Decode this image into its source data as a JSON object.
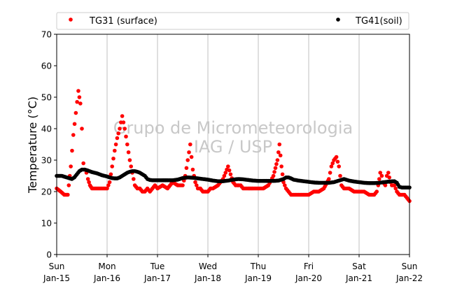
{
  "chart_data": {
    "type": "scatter",
    "ylabel": "Temperature (°C)",
    "ylim": [
      0,
      70
    ],
    "yticks": [
      0,
      10,
      20,
      30,
      40,
      50,
      60,
      70
    ],
    "xlim": [
      0,
      7
    ],
    "xticks": [
      {
        "x": 0,
        "day": "Sun",
        "date": "Jan-15"
      },
      {
        "x": 1,
        "day": "Mon",
        "date": "Jan-16"
      },
      {
        "x": 2,
        "day": "Tue",
        "date": "Jan-17"
      },
      {
        "x": 3,
        "day": "Wed",
        "date": "Jan-18"
      },
      {
        "x": 4,
        "day": "Thu",
        "date": "Jan-19"
      },
      {
        "x": 5,
        "day": "Fri",
        "date": "Jan-20"
      },
      {
        "x": 6,
        "day": "Sat",
        "date": "Jan-21"
      },
      {
        "x": 7,
        "day": "Sun",
        "date": "Jan-22"
      }
    ],
    "grid": "vertical",
    "legend_position": "top",
    "watermark": [
      "Grupo de Micrometeorologia",
      "IAG / USP"
    ],
    "series": [
      {
        "name": "TG31 (surface)",
        "color": "#ff0000",
        "x": [
          0.0,
          0.08,
          0.15,
          0.22,
          0.28,
          0.33,
          0.38,
          0.43,
          0.47,
          0.5,
          0.53,
          0.56,
          0.59,
          0.62,
          0.66,
          0.7,
          0.75,
          0.8,
          0.85,
          0.9,
          0.95,
          1.0,
          1.05,
          1.1,
          1.15,
          1.2,
          1.25,
          1.3,
          1.35,
          1.4,
          1.45,
          1.5,
          1.55,
          1.6,
          1.65,
          1.7,
          1.75,
          1.8,
          1.85,
          1.9,
          1.95,
          2.0,
          2.1,
          2.2,
          2.3,
          2.4,
          2.5,
          2.55,
          2.6,
          2.65,
          2.7,
          2.75,
          2.8,
          2.85,
          2.9,
          2.95,
          3.0,
          3.05,
          3.1,
          3.2,
          3.3,
          3.4,
          3.5,
          3.55,
          3.58,
          3.62,
          3.65,
          3.7,
          3.75,
          3.8,
          3.9,
          4.0,
          4.1,
          4.2,
          4.3,
          4.38,
          4.42,
          4.46,
          4.5,
          4.55,
          4.6,
          4.65,
          4.7,
          4.8,
          4.9,
          5.0,
          5.1,
          5.2,
          5.3,
          5.4,
          5.45,
          5.5,
          5.55,
          5.6,
          5.65,
          5.7,
          5.8,
          5.9,
          6.0,
          6.1,
          6.2,
          6.3,
          6.35,
          6.38,
          6.42,
          6.45,
          6.48,
          6.52,
          6.55,
          6.58,
          6.62,
          6.65,
          6.7,
          6.75,
          6.8,
          6.85,
          6.9,
          6.95,
          7.0
        ],
        "y": [
          21,
          20,
          19,
          19,
          28,
          38,
          45,
          52,
          48,
          40,
          29,
          27,
          26,
          24,
          22,
          21,
          21,
          21,
          21,
          21,
          21,
          21,
          23,
          28,
          33,
          37,
          40,
          44,
          40,
          35,
          30,
          26,
          22,
          21,
          21,
          20,
          20,
          21,
          20,
          21,
          22,
          21,
          22,
          21,
          23,
          22,
          22,
          25,
          30,
          35,
          27,
          23,
          21,
          21,
          20,
          20,
          20,
          21,
          21,
          22,
          24,
          28,
          23,
          22,
          22,
          22,
          22,
          21,
          21,
          21,
          21,
          21,
          21,
          22,
          25,
          30,
          35,
          28,
          23,
          21,
          20,
          19,
          19,
          19,
          19,
          19,
          20,
          20,
          21,
          24,
          28,
          30,
          31,
          28,
          22,
          21,
          21,
          20,
          20,
          20,
          19,
          19,
          20,
          22,
          26,
          25,
          23,
          22,
          25,
          26,
          23,
          22,
          22,
          20,
          19,
          19,
          19,
          18,
          17
        ]
      },
      {
        "name": "TG41(soil)",
        "color": "#000000",
        "x": [
          0.0,
          0.1,
          0.2,
          0.3,
          0.35,
          0.4,
          0.45,
          0.5,
          0.55,
          0.6,
          0.65,
          0.7,
          0.75,
          0.8,
          0.85,
          0.9,
          0.95,
          1.0,
          1.05,
          1.1,
          1.15,
          1.2,
          1.25,
          1.3,
          1.35,
          1.4,
          1.45,
          1.5,
          1.55,
          1.6,
          1.65,
          1.7,
          1.75,
          1.8,
          1.85,
          1.9,
          1.95,
          2.0,
          2.1,
          2.2,
          2.3,
          2.4,
          2.5,
          2.6,
          2.7,
          2.8,
          2.9,
          3.0,
          3.1,
          3.2,
          3.3,
          3.4,
          3.5,
          3.6,
          3.7,
          3.8,
          3.9,
          4.0,
          4.1,
          4.2,
          4.3,
          4.4,
          4.5,
          4.55,
          4.6,
          4.65,
          4.7,
          4.8,
          4.9,
          5.0,
          5.1,
          5.2,
          5.3,
          5.4,
          5.5,
          5.6,
          5.7,
          5.8,
          5.9,
          6.0,
          6.1,
          6.2,
          6.3,
          6.4,
          6.5,
          6.6,
          6.7,
          6.75,
          6.8,
          6.85,
          6.9,
          6.95,
          7.0
        ],
        "y": [
          25,
          25,
          24.5,
          24,
          24.5,
          25.5,
          26.5,
          27,
          27,
          26.8,
          26.5,
          26.2,
          26,
          25.8,
          25.5,
          25.2,
          25,
          24.8,
          24.5,
          24.3,
          24.2,
          24.2,
          24.5,
          25,
          25.5,
          26,
          26.3,
          26.5,
          26.5,
          26.3,
          26,
          25.5,
          25,
          24,
          23.7,
          23.6,
          23.6,
          23.6,
          23.6,
          23.6,
          23.6,
          23.8,
          24.3,
          24.5,
          24.4,
          24.2,
          24,
          23.8,
          23.5,
          23.3,
          23.3,
          23.5,
          23.8,
          24,
          23.9,
          23.7,
          23.5,
          23.4,
          23.4,
          23.4,
          23.4,
          23.5,
          24,
          24.5,
          24.5,
          24.2,
          23.8,
          23.5,
          23.3,
          23.1,
          22.9,
          22.8,
          22.8,
          22.8,
          23,
          23.5,
          24,
          23.5,
          23.2,
          23,
          22.8,
          22.7,
          22.7,
          22.8,
          23,
          23.2,
          23.3,
          22.8,
          21.5,
          21.3,
          21.3,
          21.3,
          21.3
        ]
      }
    ]
  }
}
